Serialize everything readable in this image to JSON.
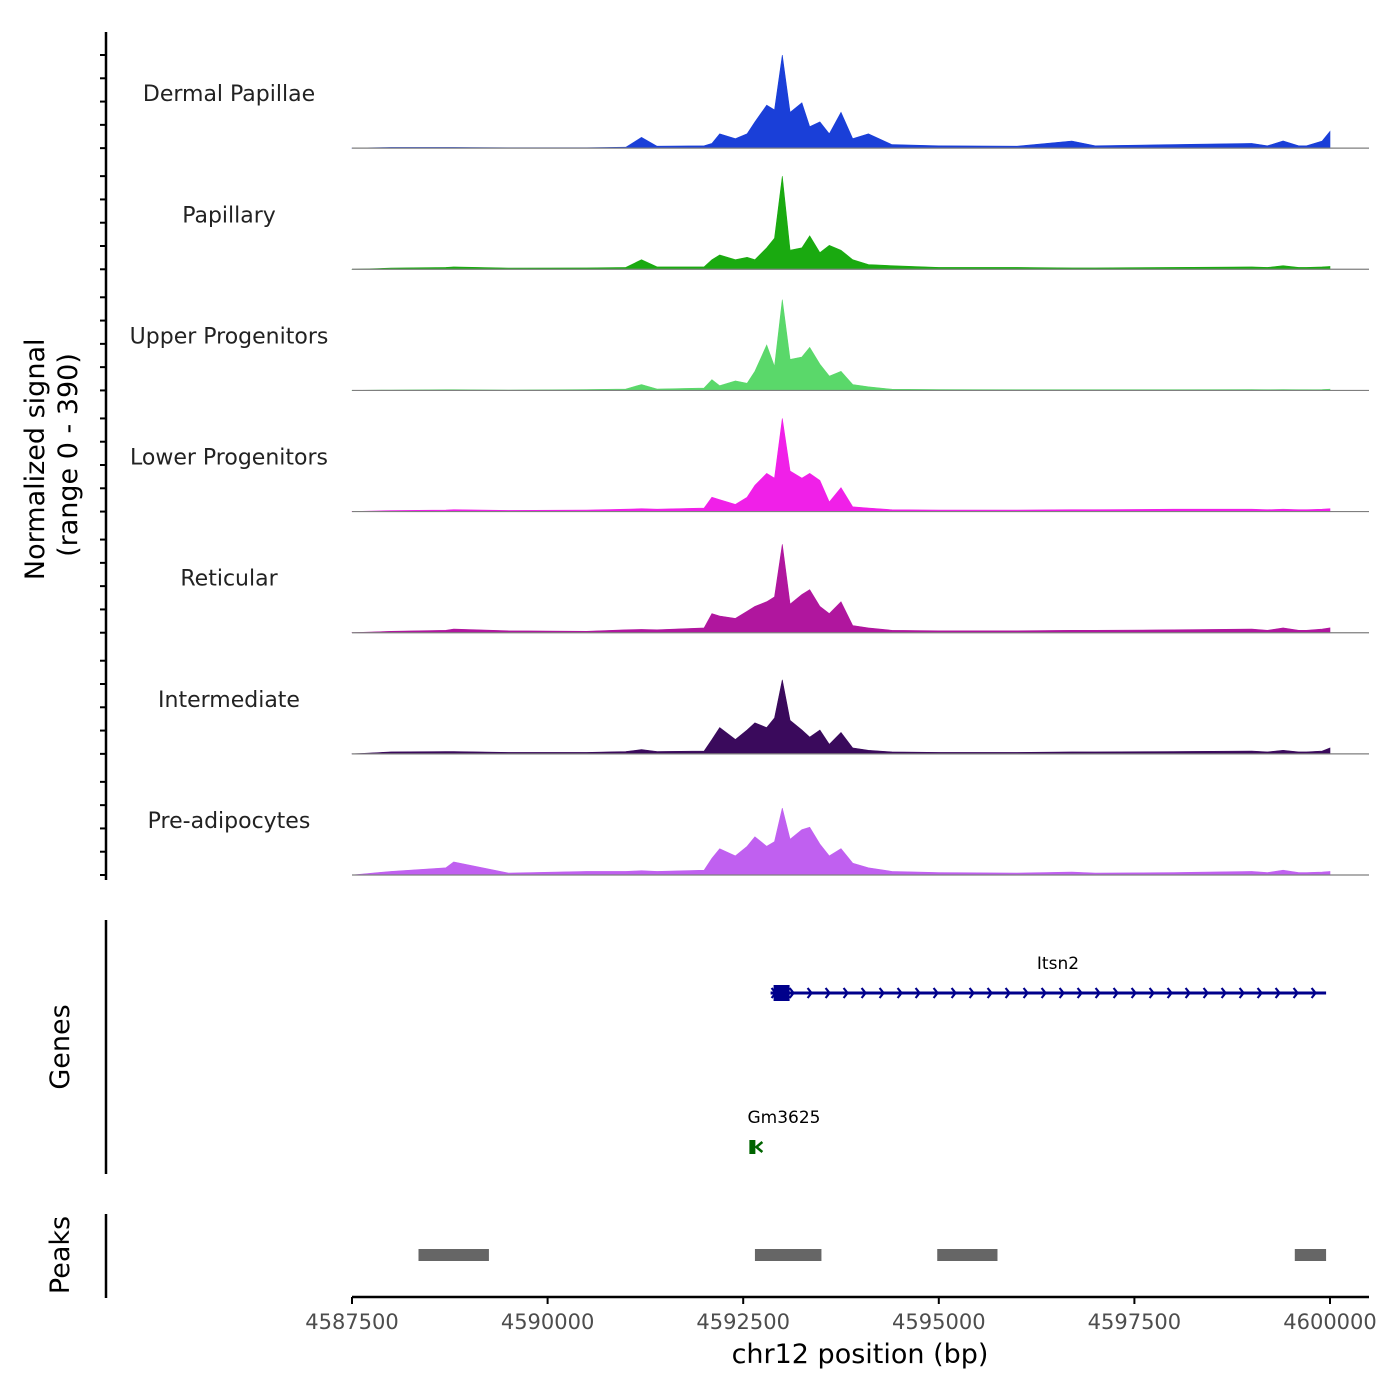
{
  "chart_data": {
    "type": "area",
    "title": "",
    "region": "chr12",
    "xlabel": "chr12 position (bp)",
    "ylabel": "Normalized signal\n(range 0 - 390)",
    "ylim": [
      0,
      390
    ],
    "xlim": [
      4587500,
      4600500
    ],
    "x_ticks": [
      4587500,
      4590000,
      4592500,
      4595000,
      4597500,
      4600000
    ],
    "x_tick_labels": [
      "4587500",
      "4590000",
      "4592500",
      "4595000",
      "4597500",
      "4600000"
    ],
    "coverage": {
      "x": [
        4587500,
        4588000,
        4588700,
        4588800,
        4589500,
        4590500,
        4591000,
        4591200,
        4591400,
        4592000,
        4592100,
        4592200,
        4592400,
        4592550,
        4592650,
        4592800,
        4592900,
        4593000,
        4593100,
        4593250,
        4593350,
        4593480,
        4593600,
        4593750,
        4593900,
        4594100,
        4594400,
        4595000,
        4596000,
        4596700,
        4597000,
        4598000,
        4599000,
        4599200,
        4599400,
        4599600,
        4599700,
        4599900,
        4600000
      ],
      "series": [
        {
          "name": "Dermal Papillae",
          "color": "#1a3fd8",
          "values": [
            0,
            3,
            3,
            3,
            2,
            2,
            4,
            45,
            8,
            10,
            20,
            60,
            40,
            60,
            110,
            180,
            160,
            390,
            150,
            190,
            90,
            110,
            60,
            150,
            40,
            60,
            15,
            10,
            8,
            30,
            10,
            15,
            20,
            10,
            30,
            10,
            10,
            30,
            70
          ]
        },
        {
          "name": "Papillary",
          "color": "#1aaa10",
          "values": [
            0,
            5,
            8,
            10,
            5,
            6,
            8,
            40,
            10,
            10,
            40,
            60,
            40,
            50,
            40,
            90,
            130,
            390,
            80,
            90,
            140,
            70,
            100,
            80,
            40,
            20,
            15,
            8,
            8,
            6,
            6,
            8,
            10,
            8,
            15,
            8,
            8,
            10,
            12
          ]
        },
        {
          "name": "Upper Progenitors",
          "color": "#5ad86a",
          "values": [
            0,
            2,
            3,
            3,
            2,
            4,
            6,
            25,
            6,
            10,
            45,
            20,
            40,
            30,
            80,
            190,
            100,
            380,
            130,
            140,
            180,
            110,
            60,
            80,
            25,
            15,
            5,
            4,
            3,
            3,
            3,
            3,
            4,
            3,
            4,
            3,
            3,
            4,
            5
          ]
        },
        {
          "name": "Lower Progenitors",
          "color": "#f020e8",
          "values": [
            0,
            4,
            6,
            8,
            5,
            6,
            10,
            12,
            10,
            15,
            60,
            50,
            30,
            60,
            110,
            160,
            140,
            390,
            170,
            140,
            160,
            130,
            40,
            100,
            20,
            15,
            8,
            6,
            6,
            8,
            8,
            10,
            10,
            8,
            10,
            8,
            8,
            10,
            12
          ]
        },
        {
          "name": "Reticular",
          "color": "#b0169e",
          "values": [
            0,
            6,
            10,
            15,
            8,
            6,
            12,
            14,
            12,
            20,
            80,
            70,
            60,
            90,
            110,
            130,
            150,
            370,
            120,
            160,
            180,
            110,
            80,
            130,
            30,
            20,
            10,
            8,
            8,
            10,
            10,
            12,
            15,
            10,
            20,
            10,
            10,
            15,
            20
          ]
        },
        {
          "name": "Intermediate",
          "color": "#3a0a5c",
          "values": [
            0,
            8,
            10,
            10,
            6,
            6,
            10,
            18,
            10,
            12,
            60,
            110,
            60,
            100,
            130,
            110,
            150,
            310,
            140,
            100,
            70,
            100,
            40,
            90,
            25,
            15,
            8,
            6,
            6,
            8,
            8,
            10,
            12,
            8,
            15,
            8,
            8,
            12,
            25
          ]
        },
        {
          "name": "Pre-adipocytes",
          "color": "#c060f0",
          "values": [
            0,
            15,
            30,
            55,
            8,
            15,
            15,
            18,
            15,
            20,
            70,
            110,
            80,
            120,
            160,
            120,
            140,
            280,
            150,
            190,
            200,
            130,
            80,
            110,
            50,
            30,
            15,
            10,
            8,
            12,
            8,
            10,
            15,
            10,
            20,
            10,
            10,
            12,
            15
          ]
        }
      ]
    },
    "genes": [
      {
        "name": "Itsn2",
        "start": 4592850,
        "end": 4599950,
        "strand": "+",
        "color": "#00008b"
      },
      {
        "name": "Gm3625",
        "start": 4592630,
        "end": 4592720,
        "strand": "-",
        "color": "#006400"
      }
    ],
    "peaks": [
      {
        "start": 4588350,
        "end": 4589250
      },
      {
        "start": 4592650,
        "end": 4593500
      },
      {
        "start": 4594980,
        "end": 4595750
      },
      {
        "start": 4599550,
        "end": 4599950
      }
    ],
    "panel_titles": {
      "genes": "Genes",
      "peaks": "Peaks"
    }
  }
}
